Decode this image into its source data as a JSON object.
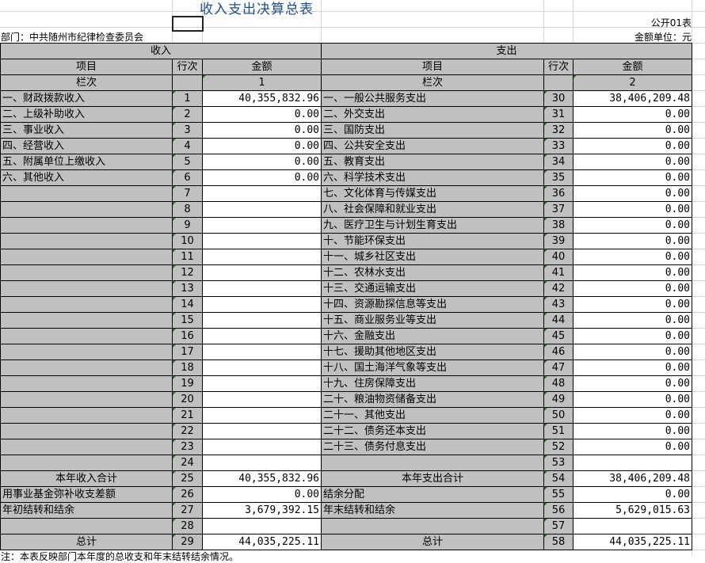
{
  "title": "收入支出决算总表",
  "form_no": "公开01表",
  "department": "部门：中共随州市纪律检查委员会",
  "unit": "金额单位：元",
  "headers": {
    "income": "收入",
    "expense": "支出",
    "item": "项目",
    "row_no": "行次",
    "amount": "金额",
    "column_no": "栏次",
    "col1": "1",
    "col2": "2"
  },
  "rows": [
    {
      "il": "一、财政拨款收入",
      "in": "1",
      "ia": "40,355,832.96",
      "el": "一、一般公共服务支出",
      "en": "30",
      "ea": "38,406,209.48"
    },
    {
      "il": "二、上级补助收入",
      "in": "2",
      "ia": "0.00",
      "el": "二、外交支出",
      "en": "31",
      "ea": "0.00"
    },
    {
      "il": "三、事业收入",
      "in": "3",
      "ia": "0.00",
      "el": "三、国防支出",
      "en": "32",
      "ea": "0.00"
    },
    {
      "il": "四、经营收入",
      "in": "4",
      "ia": "0.00",
      "el": "四、公共安全支出",
      "en": "33",
      "ea": "0.00"
    },
    {
      "il": "五、附属单位上缴收入",
      "in": "5",
      "ia": "0.00",
      "el": "五、教育支出",
      "en": "34",
      "ea": "0.00"
    },
    {
      "il": "六、其他收入",
      "in": "6",
      "ia": "0.00",
      "el": "六、科学技术支出",
      "en": "35",
      "ea": "0.00"
    },
    {
      "il": "",
      "in": "7",
      "ia": "",
      "el": "七、文化体育与传媒支出",
      "en": "36",
      "ea": "0.00"
    },
    {
      "il": "",
      "in": "8",
      "ia": "",
      "el": "八、社会保障和就业支出",
      "en": "37",
      "ea": "0.00"
    },
    {
      "il": "",
      "in": "9",
      "ia": "",
      "el": "九、医疗卫生与计划生育支出",
      "en": "38",
      "ea": "0.00"
    },
    {
      "il": "",
      "in": "10",
      "ia": "",
      "el": "十、节能环保支出",
      "en": "39",
      "ea": "0.00"
    },
    {
      "il": "",
      "in": "11",
      "ia": "",
      "el": "十一、城乡社区支出",
      "en": "40",
      "ea": "0.00"
    },
    {
      "il": "",
      "in": "12",
      "ia": "",
      "el": "十二、农林水支出",
      "en": "41",
      "ea": "0.00"
    },
    {
      "il": "",
      "in": "13",
      "ia": "",
      "el": "十三、交通运输支出",
      "en": "42",
      "ea": "0.00"
    },
    {
      "il": "",
      "in": "14",
      "ia": "",
      "el": "十四、资源勘探信息等支出",
      "en": "43",
      "ea": "0.00"
    },
    {
      "il": "",
      "in": "15",
      "ia": "",
      "el": "十五、商业服务业等支出",
      "en": "44",
      "ea": "0.00"
    },
    {
      "il": "",
      "in": "16",
      "ia": "",
      "el": "十六、金融支出",
      "en": "45",
      "ea": "0.00"
    },
    {
      "il": "",
      "in": "17",
      "ia": "",
      "el": "十七、援助其他地区支出",
      "en": "46",
      "ea": "0.00"
    },
    {
      "il": "",
      "in": "18",
      "ia": "",
      "el": "十八、国土海洋气象等支出",
      "en": "47",
      "ea": "0.00"
    },
    {
      "il": "",
      "in": "19",
      "ia": "",
      "el": "十九、住房保障支出",
      "en": "48",
      "ea": "0.00"
    },
    {
      "il": "",
      "in": "20",
      "ia": "",
      "el": "二十、粮油物资储备支出",
      "en": "49",
      "ea": "0.00"
    },
    {
      "il": "",
      "in": "21",
      "ia": "",
      "el": "二十一、其他支出",
      "en": "50",
      "ea": "0.00"
    },
    {
      "il": "",
      "in": "22",
      "ia": "",
      "el": "二十二、债务还本支出",
      "en": "51",
      "ea": "0.00"
    },
    {
      "il": "",
      "in": "23",
      "ia": "",
      "el": "二十三、债务付息支出",
      "en": "52",
      "ea": "0.00"
    },
    {
      "il": "",
      "in": "24",
      "ia": "",
      "el": "",
      "en": "53",
      "ea": ""
    },
    {
      "il": "本年收入合计",
      "in": "25",
      "ia": "40,355,832.96",
      "el": "本年支出合计",
      "en": "54",
      "ea": "38,406,209.48",
      "center": true
    },
    {
      "il": "用事业基金弥补收支差额",
      "in": "26",
      "ia": "0.00",
      "el": "结余分配",
      "en": "55",
      "ea": "0.00"
    },
    {
      "il": "年初结转和结余",
      "in": "27",
      "ia": "3,679,392.15",
      "el": "年末结转和结余",
      "en": "56",
      "ea": "5,629,015.63"
    },
    {
      "il": "",
      "in": "28",
      "ia": "",
      "el": "",
      "en": "57",
      "ea": ""
    },
    {
      "il": "总计",
      "in": "29",
      "ia": "44,035,225.11",
      "el": "总计",
      "en": "58",
      "ea": "44,035,225.11",
      "center": true
    }
  ],
  "note": "注：本表反映部门本年度的总收支和年末结转结余情况。"
}
